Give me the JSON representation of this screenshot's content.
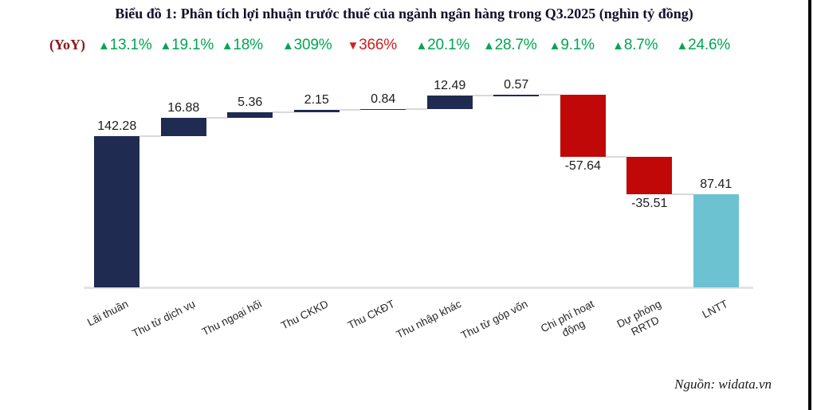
{
  "chart_data": {
    "type": "bar",
    "subtype": "waterfall",
    "title": "Biểu đồ 1: Phân tích lợi nhuận trước thuế của ngành ngân hàng trong Q3.2025 (nghìn tỷ đồng)",
    "yoy": {
      "prefix": "(YoY)",
      "items": [
        {
          "direction": "up",
          "value": "13.1%"
        },
        {
          "direction": "up",
          "value": "19.1%"
        },
        {
          "direction": "up",
          "value": "18%"
        },
        {
          "direction": "up",
          "value": "309%"
        },
        {
          "direction": "down",
          "value": "366%"
        },
        {
          "direction": "up",
          "value": "20.1%"
        },
        {
          "direction": "up",
          "value": "28.7%"
        },
        {
          "direction": "up",
          "value": "9.1%"
        },
        {
          "direction": "up",
          "value": "8.7%"
        },
        {
          "direction": "up",
          "value": "24.6%"
        }
      ]
    },
    "categories": [
      "Lãi thuần",
      "Thu từ dịch vụ",
      "Thu ngoại hối",
      "Thu CKKD",
      "Thu CKĐT",
      "Thu nhập khác",
      "Thu từ góp vốn",
      "Chi phí hoạt\nđộng",
      "Dự phòng\nRRTD",
      "LNTT"
    ],
    "values": [
      142.28,
      16.88,
      5.36,
      2.15,
      0.84,
      12.49,
      0.57,
      -57.64,
      -35.51,
      87.41
    ],
    "bar_roles": [
      "increase",
      "increase",
      "increase",
      "increase",
      "increase",
      "increase",
      "increase",
      "decrease",
      "decrease",
      "total"
    ],
    "value_labels": [
      "142.28",
      "16.88",
      "5.36",
      "2.15",
      "0.84",
      "12.49",
      "0.57",
      "-57.64",
      "-35.51",
      "87.41"
    ],
    "ylim": [
      0,
      195
    ],
    "grid": false,
    "legend": false,
    "xlabel": "",
    "ylabel": "",
    "colors": {
      "increase": "#202b52",
      "decrease": "#c00808",
      "total": "#6dc2d1",
      "connector": "#d9d9d9",
      "axis": "#e3e3e3",
      "yoy_up": "#00a651",
      "yoy_down": "#cc2020",
      "yoy_prefix": "#8b1a1a"
    },
    "source": "Nguồn: widata.vn"
  }
}
